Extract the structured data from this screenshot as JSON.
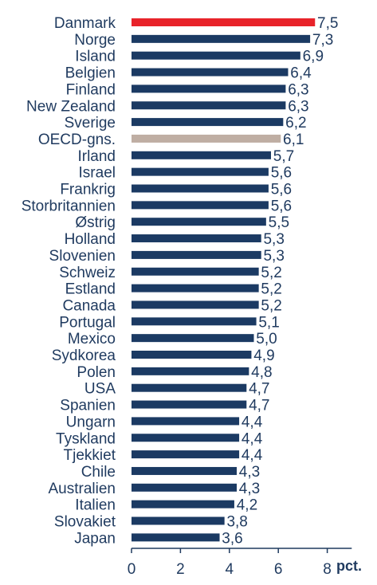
{
  "chart_data": {
    "type": "bar",
    "orientation": "horizontal",
    "categories": [
      "Danmark",
      "Norge",
      "Island",
      "Belgien",
      "Finland",
      "New Zealand",
      "Sverige",
      "OECD-gns.",
      "Irland",
      "Israel",
      "Frankrig",
      "Storbritannien",
      "Østrig",
      "Holland",
      "Slovenien",
      "Schweiz",
      "Estland",
      "Canada",
      "Portugal",
      "Mexico",
      "Sydkorea",
      "Polen",
      "USA",
      "Spanien",
      "Ungarn",
      "Tyskland",
      "Tjekkiet",
      "Chile",
      "Australien",
      "Italien",
      "Slovakiet",
      "Japan"
    ],
    "values": [
      7.5,
      7.3,
      6.9,
      6.4,
      6.3,
      6.3,
      6.2,
      6.1,
      5.7,
      5.6,
      5.6,
      5.6,
      5.5,
      5.3,
      5.3,
      5.2,
      5.2,
      5.2,
      5.1,
      5.0,
      4.9,
      4.8,
      4.7,
      4.7,
      4.4,
      4.4,
      4.4,
      4.3,
      4.3,
      4.2,
      3.8,
      3.6
    ],
    "value_labels": [
      "7,5",
      "7,3",
      "6,9",
      "6,4",
      "6,3",
      "6,3",
      "6,2",
      "6,1",
      "5,7",
      "5,6",
      "5,6",
      "5,6",
      "5,5",
      "5,3",
      "5,3",
      "5,2",
      "5,2",
      "5,2",
      "5,1",
      "5,0",
      "4,9",
      "4,8",
      "4,7",
      "4,7",
      "4,4",
      "4,4",
      "4,4",
      "4,3",
      "4,3",
      "4,2",
      "3,8",
      "3,6"
    ],
    "colors": {
      "default": "#1b3a63",
      "Danmark": "#e8232a",
      "OECD-gns.": "#bfaea3"
    },
    "xlim": [
      0,
      9
    ],
    "xticks": [
      0,
      2,
      4,
      6,
      8
    ],
    "xtick_labels": [
      "0",
      "2",
      "4",
      "6",
      "8"
    ],
    "xlabel": "pct.",
    "grid": false,
    "legend": "none"
  }
}
